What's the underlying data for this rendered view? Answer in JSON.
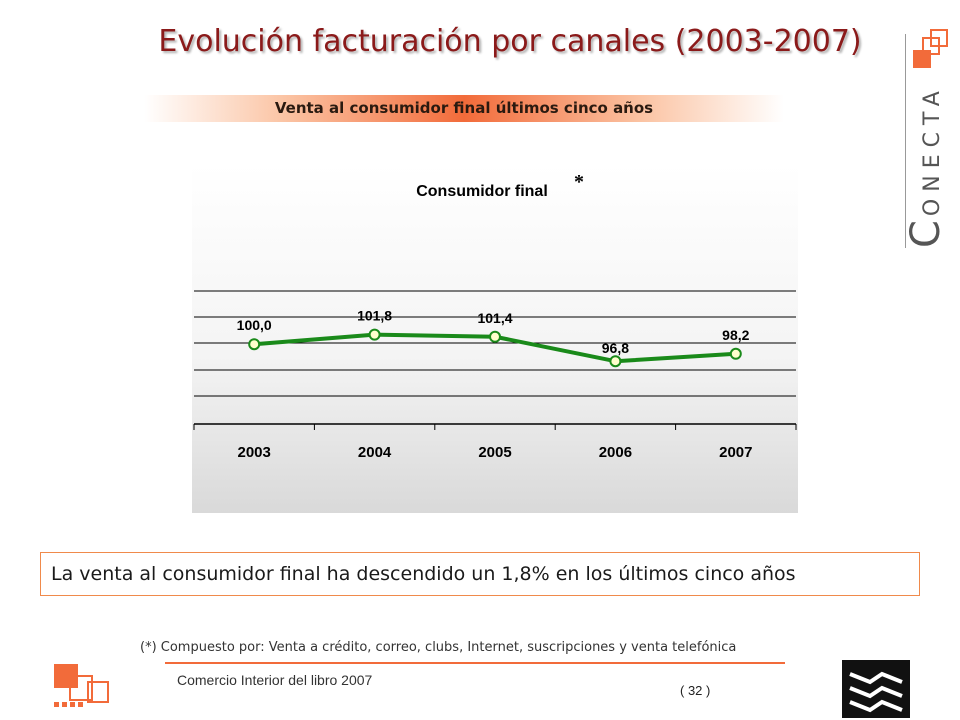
{
  "slide": {
    "title": "Evolución facturación por canales (2003-2007)",
    "subtitle": "Venta al consumidor final últimos cinco años",
    "brand": "CONECTA",
    "note": "La venta al consumidor final ha descendido un 1,8% en los últimos cinco años",
    "footnote": "(*) Compuesto por: Venta a crédito, correo, clubs, Internet, suscripciones y venta telefónica",
    "footer": "Comercio Interior del libro 2007",
    "page": "( 32 )"
  },
  "colors": {
    "title": "#8b1a1a",
    "accent": "#f26b3a",
    "line": "#1a8a1a",
    "marker_fill": "#ffffcc"
  },
  "chart_data": {
    "type": "line",
    "title": "Consumidor final",
    "title_marker": "*",
    "categories": [
      "2003",
      "2004",
      "2005",
      "2006",
      "2007"
    ],
    "series": [
      {
        "values": [
          100.0,
          101.8,
          101.4,
          96.8,
          98.2
        ]
      }
    ],
    "data_labels": [
      "100,0",
      "101,8",
      "101,4",
      "96,8",
      "98,2"
    ],
    "grid": true,
    "legend": "none"
  }
}
